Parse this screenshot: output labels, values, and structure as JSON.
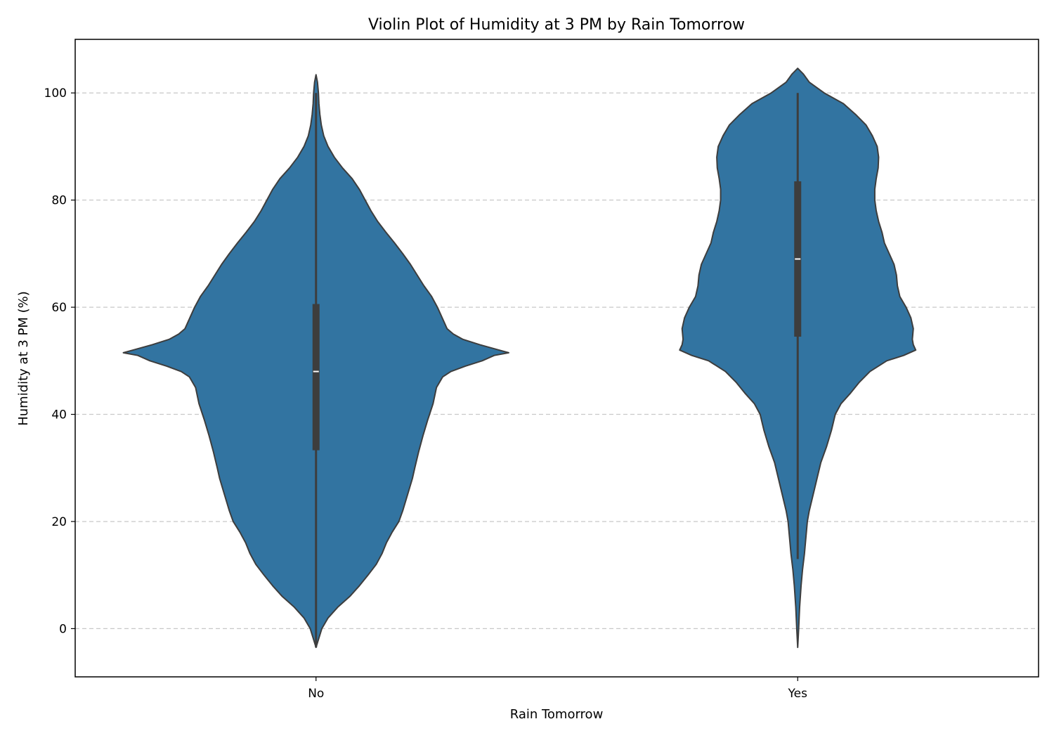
{
  "chart_data": {
    "type": "violin",
    "title": "Violin Plot of Humidity at 3 PM by Rain Tomorrow",
    "xlabel": "Rain Tomorrow",
    "ylabel": "Humidity at 3 PM (%)",
    "categories": [
      "No",
      "Yes"
    ],
    "ylim": [
      -9,
      110
    ],
    "yticks": [
      0,
      20,
      40,
      60,
      80,
      100
    ],
    "grid": {
      "y": true,
      "style": "dashed"
    },
    "colors": {
      "violin": "#3274a1",
      "outline": "#3d3d3d",
      "box": "#3d3d3d",
      "median": "#ffffff",
      "grid": "#c8c8c8"
    },
    "series": [
      {
        "category": "No",
        "box": {
          "whisker_low": -3.5,
          "q1": 33.3,
          "median": 48,
          "q3": 60.6,
          "whisker_high": 100
        },
        "density_max_halfwidth": 0.4,
        "density": [
          [
            -3.5,
            0.0
          ],
          [
            0,
            0.012
          ],
          [
            2,
            0.025
          ],
          [
            4,
            0.045
          ],
          [
            6,
            0.07
          ],
          [
            8,
            0.09
          ],
          [
            10,
            0.108
          ],
          [
            12,
            0.125
          ],
          [
            14,
            0.137
          ],
          [
            16,
            0.146
          ],
          [
            18,
            0.158
          ],
          [
            20,
            0.172
          ],
          [
            22,
            0.18
          ],
          [
            25,
            0.19
          ],
          [
            28,
            0.2
          ],
          [
            30,
            0.205
          ],
          [
            33,
            0.213
          ],
          [
            36,
            0.222
          ],
          [
            39,
            0.232
          ],
          [
            42,
            0.243
          ],
          [
            45,
            0.25
          ],
          [
            47,
            0.263
          ],
          [
            48,
            0.28
          ],
          [
            49,
            0.31
          ],
          [
            50,
            0.345
          ],
          [
            51,
            0.37
          ],
          [
            51.5,
            0.4
          ],
          [
            52,
            0.38
          ],
          [
            53,
            0.34
          ],
          [
            54,
            0.305
          ],
          [
            55,
            0.285
          ],
          [
            56,
            0.272
          ],
          [
            58,
            0.262
          ],
          [
            60,
            0.252
          ],
          [
            62,
            0.24
          ],
          [
            64,
            0.224
          ],
          [
            66,
            0.21
          ],
          [
            68,
            0.196
          ],
          [
            70,
            0.18
          ],
          [
            72,
            0.163
          ],
          [
            74,
            0.145
          ],
          [
            76,
            0.128
          ],
          [
            78,
            0.114
          ],
          [
            80,
            0.102
          ],
          [
            82,
            0.09
          ],
          [
            84,
            0.075
          ],
          [
            86,
            0.055
          ],
          [
            88,
            0.038
          ],
          [
            90,
            0.025
          ],
          [
            92,
            0.016
          ],
          [
            94,
            0.011
          ],
          [
            96,
            0.008
          ],
          [
            98,
            0.006
          ],
          [
            100,
            0.005
          ],
          [
            102,
            0.003
          ],
          [
            103.4,
            0.0
          ]
        ]
      },
      {
        "category": "Yes",
        "box": {
          "whisker_low": 13,
          "q1": 54.5,
          "median": 69,
          "q3": 83.5,
          "whisker_high": 100
        },
        "density_max_halfwidth": 0.29,
        "density": [
          [
            -3.5,
            0.0
          ],
          [
            0,
            0.002
          ],
          [
            4,
            0.004
          ],
          [
            8,
            0.007
          ],
          [
            11,
            0.01
          ],
          [
            14,
            0.014
          ],
          [
            17,
            0.017
          ],
          [
            20,
            0.02
          ],
          [
            22,
            0.024
          ],
          [
            25,
            0.032
          ],
          [
            28,
            0.04
          ],
          [
            31,
            0.048
          ],
          [
            34,
            0.06
          ],
          [
            37,
            0.07
          ],
          [
            40,
            0.078
          ],
          [
            42,
            0.09
          ],
          [
            44,
            0.11
          ],
          [
            46,
            0.128
          ],
          [
            48,
            0.15
          ],
          [
            50,
            0.185
          ],
          [
            51,
            0.22
          ],
          [
            52,
            0.245
          ],
          [
            53,
            0.24
          ],
          [
            54,
            0.238
          ],
          [
            56,
            0.24
          ],
          [
            58,
            0.235
          ],
          [
            60,
            0.225
          ],
          [
            62,
            0.212
          ],
          [
            64,
            0.207
          ],
          [
            66,
            0.205
          ],
          [
            68,
            0.2
          ],
          [
            70,
            0.19
          ],
          [
            72,
            0.18
          ],
          [
            74,
            0.175
          ],
          [
            76,
            0.168
          ],
          [
            78,
            0.163
          ],
          [
            80,
            0.16
          ],
          [
            82,
            0.16
          ],
          [
            84,
            0.163
          ],
          [
            86,
            0.167
          ],
          [
            88,
            0.168
          ],
          [
            90,
            0.165
          ],
          [
            92,
            0.155
          ],
          [
            94,
            0.142
          ],
          [
            96,
            0.12
          ],
          [
            98,
            0.095
          ],
          [
            100,
            0.055
          ],
          [
            102,
            0.024
          ],
          [
            103.5,
            0.012
          ],
          [
            104.6,
            0.0
          ]
        ]
      }
    ]
  }
}
